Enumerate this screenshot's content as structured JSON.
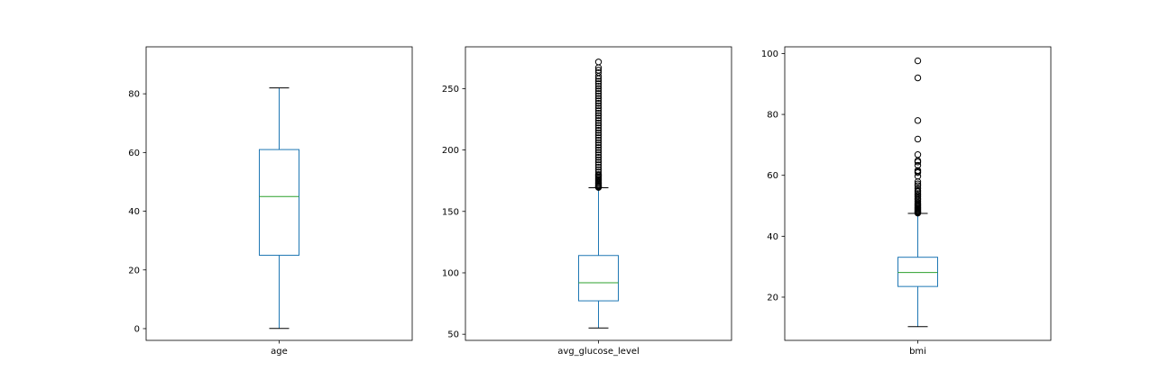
{
  "chart_data": [
    {
      "type": "box",
      "category": "age",
      "xlabel": "age",
      "ylim": [
        -4,
        96
      ],
      "yticks": [
        0,
        20,
        40,
        60,
        80
      ],
      "box": {
        "whisker_low": 0.08,
        "q1": 25,
        "median": 45,
        "q3": 61,
        "whisker_high": 82
      },
      "outliers": []
    },
    {
      "type": "box",
      "category": "avg_glucose_level",
      "xlabel": "avg_glucose_level",
      "ylim": [
        45,
        284
      ],
      "yticks": [
        50,
        100,
        150,
        200,
        250
      ],
      "box": {
        "whisker_low": 55.1,
        "q1": 77.2,
        "median": 91.9,
        "q3": 114.1,
        "whisker_high": 169.3
      },
      "outliers": [
        169.5,
        170,
        170.5,
        171,
        172,
        173,
        174,
        175,
        176,
        177,
        178,
        179,
        180,
        182,
        184,
        186,
        188,
        190,
        192,
        194,
        196,
        198,
        200,
        202,
        204,
        206,
        208,
        210,
        212,
        214,
        216,
        218,
        220,
        222,
        224,
        226,
        228,
        230,
        232,
        234,
        236,
        238,
        240,
        242,
        244,
        246,
        248,
        250,
        252,
        254,
        256,
        258,
        260,
        263,
        265,
        267,
        271.7
      ]
    },
    {
      "type": "box",
      "category": "bmi",
      "xlabel": "bmi",
      "ylim": [
        5.8,
        102.2
      ],
      "yticks": [
        20,
        40,
        60,
        80,
        100
      ],
      "box": {
        "whisker_low": 10.3,
        "q1": 23.5,
        "median": 28.1,
        "q3": 33.1,
        "whisker_high": 47.5
      },
      "outliers": [
        47.6,
        47.8,
        48,
        48.2,
        48.5,
        48.8,
        49,
        49.3,
        49.6,
        50,
        50.3,
        50.6,
        51,
        51.5,
        52,
        52.5,
        53,
        53.5,
        54,
        54.6,
        55,
        55.7,
        56.6,
        57.2,
        57.9,
        59.7,
        60.9,
        61.2,
        61.6,
        63.3,
        64.4,
        64.8,
        66.8,
        71.9,
        78,
        92,
        97.6
      ]
    }
  ],
  "colors": {
    "box": "#1f77b4",
    "median": "#2ca02c",
    "outlier_edge": "#000000",
    "axes": "#000000"
  }
}
